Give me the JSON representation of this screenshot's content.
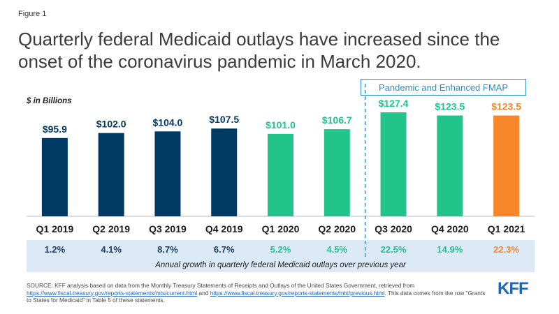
{
  "figure_label": "Figure 1",
  "title": "Quarterly federal Medicaid outlays have increased since the onset of the coronavirus pandemic in March 2020.",
  "units_label": "$ in Billions",
  "pandemic_label": "Pandemic and Enhanced FMAP",
  "growth_caption": "Annual growth  in quarterly federal Medicaid outlays over previous year",
  "source": {
    "line1": "SOURCE: KFF analysis based on data from the Monthly Treasury Statements of Receipts and Outlays of the United States Government, retrieved from ",
    "link1": "https://www.fiscal.treasury.gov/reports-statements/mts/current.html",
    "and": "  and ",
    "link2": "https://www.fiscal.treasury.gov/reports-statements/mts/previous.html",
    "line2": ". This data comes from the row \"Grants to States for Medicaid\" in Table 5 of these statements."
  },
  "logo": "KFF",
  "colors": {
    "pre_pandemic": "#003a63",
    "pandemic_2020": "#22c48c",
    "pandemic_2021": "#f7862a",
    "growth_pre": "#1c3f66",
    "growth_2020": "#22c48c",
    "growth_2021": "#f7862a",
    "divider": "#2e8fc0"
  },
  "chart_data": {
    "type": "bar",
    "title": "Quarterly federal Medicaid outlays have increased since the onset of the coronavirus pandemic in March 2020.",
    "ylabel": "$ in Billions",
    "categories": [
      "Q1 2019",
      "Q2 2019",
      "Q3 2019",
      "Q4 2019",
      "Q1 2020",
      "Q2 2020",
      "Q3 2020",
      "Q4 2020",
      "Q1 2021"
    ],
    "values": [
      95.9,
      102.0,
      104.0,
      107.5,
      101.0,
      106.7,
      127.4,
      123.5,
      123.5
    ],
    "value_labels": [
      "$95.9",
      "$102.0",
      "$104.0",
      "$107.5",
      "$101.0",
      "$106.7",
      "$127.4",
      "$123.5",
      "$123.5"
    ],
    "bar_color_keys": [
      "pre_pandemic",
      "pre_pandemic",
      "pre_pandemic",
      "pre_pandemic",
      "pandemic_2020",
      "pandemic_2020",
      "pandemic_2020",
      "pandemic_2020",
      "pandemic_2021"
    ],
    "growth": [
      "1.2%",
      "4.1%",
      "8.7%",
      "6.7%",
      "5.2%",
      "4.5%",
      "22.5%",
      "14.9%",
      "22.3%"
    ],
    "growth_color_keys": [
      "growth_pre",
      "growth_pre",
      "growth_pre",
      "growth_pre",
      "growth_2020",
      "growth_2020",
      "growth_2020",
      "growth_2020",
      "growth_2021"
    ],
    "divider_after_index": 5,
    "ylim": [
      0,
      135
    ],
    "grid": false,
    "legend": "none"
  }
}
